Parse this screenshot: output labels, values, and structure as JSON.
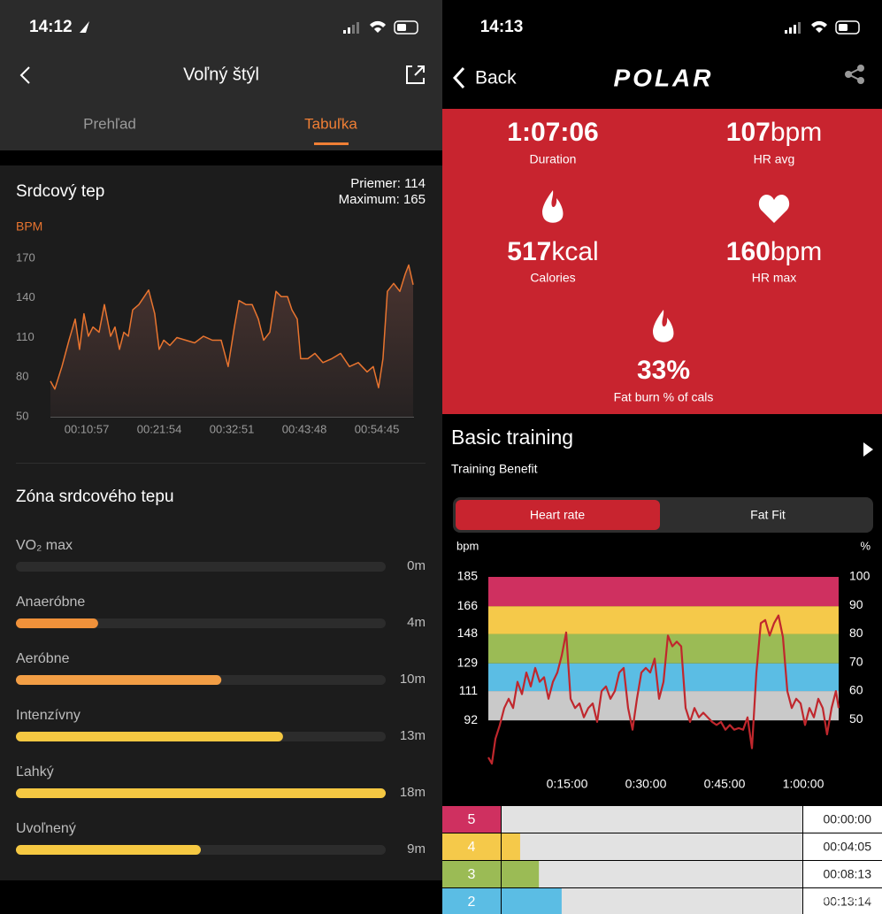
{
  "left": {
    "status_time": "14:12",
    "title": "Voľný štýl",
    "tabs": [
      "Prehľad",
      "Tabuľka"
    ],
    "hr_title": "Srdcový tep",
    "average": "Priemer: 114",
    "maximum": "Maximum: 165",
    "zones_title": "Zóna srdcového tepu"
  },
  "right": {
    "status_time": "14:13",
    "back": "Back",
    "logo": "POLAR",
    "stats": [
      {
        "value": "1:07:06",
        "label": "Duration"
      },
      {
        "value": "107",
        "unit": "bpm",
        "label": "HR avg"
      },
      {
        "value": "517",
        "unit": "kcal",
        "label": "Calories"
      },
      {
        "value": "160",
        "unit": "bpm",
        "label": "HR max"
      },
      {
        "value": "33%",
        "label": "Fat burn % of cals"
      }
    ],
    "training_title": "Basic training",
    "training_subtitle": "Training Benefit",
    "toggle": [
      "Heart rate",
      "Fat Fit"
    ],
    "watermark": "TOUCHIT"
  },
  "chart_data": [
    {
      "type": "line",
      "y_label": "BPM",
      "color": "#e8742f",
      "x": [
        328,
        368,
        432,
        496,
        552,
        592,
        632,
        672,
        713,
        769,
        817,
        873,
        913,
        953,
        993,
        1033,
        1073,
        1129,
        1177,
        1217,
        1273,
        1313,
        1354,
        1410,
        1474,
        1554,
        1634,
        1714,
        1794,
        1874,
        1938,
        1994,
        2035,
        2099,
        2155,
        2211,
        2259,
        2315,
        2371,
        2419,
        2475,
        2515,
        2563,
        2595,
        2659,
        2724,
        2796,
        2876,
        2956,
        3036,
        3116,
        3196,
        3252,
        3300,
        3340,
        3380,
        3437,
        3493,
        3541,
        3573,
        3613
      ],
      "values": [
        77,
        71,
        88,
        108,
        124,
        101,
        128,
        111,
        118,
        114,
        135,
        111,
        118,
        101,
        114,
        111,
        131,
        135,
        141,
        146,
        128,
        101,
        108,
        104,
        110,
        108,
        106,
        111,
        108,
        108,
        88,
        118,
        138,
        135,
        135,
        124,
        108,
        114,
        145,
        141,
        141,
        131,
        124,
        94,
        94,
        98,
        91,
        94,
        98,
        88,
        91,
        84,
        88,
        72,
        94,
        145,
        151,
        145,
        158,
        165,
        150
      ],
      "xlim": [
        328,
        3621
      ],
      "xticks": [
        {
          "value": 657,
          "label": "00:10:57"
        },
        {
          "value": 1314,
          "label": "00:21:54"
        },
        {
          "value": 1971,
          "label": "00:32:51"
        },
        {
          "value": 2628,
          "label": "00:43:48"
        },
        {
          "value": 3285,
          "label": "00:54:45"
        }
      ],
      "ylim": [
        50,
        170
      ],
      "yticks": [
        50,
        80,
        110,
        140,
        170
      ]
    },
    {
      "type": "hbar",
      "categories": [
        "VO₂ max",
        "Anaeróbne",
        "Aeróbne",
        "Intenzívny",
        "Ľahký",
        "Uvoľnený"
      ],
      "values": [
        0,
        4,
        10,
        13,
        18,
        9
      ],
      "value_labels": [
        "0m",
        "4m",
        "10m",
        "13m",
        "18m",
        "9m"
      ],
      "colors": [
        "#f0913a",
        "#f0913a",
        "#f29e45",
        "#f5c842",
        "#f5c842",
        "#f5c842"
      ],
      "xlim": [
        0,
        18
      ]
    },
    {
      "type": "line",
      "y_label": "bpm",
      "y2_label": "%",
      "color": "#c0272d",
      "x": [
        0,
        40,
        81,
        131,
        182,
        233,
        283,
        334,
        384,
        435,
        485,
        536,
        586,
        637,
        688,
        738,
        789,
        839,
        890,
        940,
        991,
        1041,
        1092,
        1143,
        1193,
        1244,
        1294,
        1345,
        1395,
        1446,
        1496,
        1547,
        1598,
        1648,
        1699,
        1749,
        1800,
        1850,
        1901,
        1951,
        2002,
        2053,
        2103,
        2154,
        2204,
        2255,
        2305,
        2356,
        2406,
        2457,
        2508,
        2558,
        2609,
        2659,
        2710,
        2760,
        2811,
        2861,
        2912,
        2963,
        3013,
        3064,
        3114,
        3165,
        3215,
        3266,
        3316,
        3367,
        3418,
        3468,
        3519,
        3569,
        3620,
        3670,
        3721,
        3771,
        3822,
        3872,
        3923,
        3973,
        4004
      ],
      "values": [
        68,
        64,
        80,
        89,
        100,
        106,
        100,
        117,
        109,
        123,
        114,
        126,
        117,
        120,
        106,
        117,
        123,
        134,
        149,
        106,
        100,
        103,
        94,
        100,
        103,
        91,
        111,
        114,
        106,
        111,
        123,
        126,
        100,
        86,
        106,
        123,
        126,
        123,
        132,
        106,
        117,
        147,
        140,
        143,
        140,
        100,
        91,
        100,
        94,
        97,
        94,
        91,
        89,
        91,
        86,
        89,
        86,
        87,
        86,
        94,
        74,
        123,
        155,
        157,
        147,
        155,
        160,
        146,
        111,
        100,
        106,
        103,
        89,
        100,
        94,
        106,
        100,
        83,
        100,
        111,
        100
      ],
      "xlim": [
        0,
        4004
      ],
      "xticks": [
        {
          "value": 900,
          "label": "0:15:00"
        },
        {
          "value": 1800,
          "label": "0:30:00"
        },
        {
          "value": 2700,
          "label": "0:45:00"
        },
        {
          "value": 3600,
          "label": "1:00:00"
        }
      ],
      "ylim": [
        60,
        185
      ],
      "yticks": [
        92,
        111,
        129,
        148,
        166,
        185
      ],
      "y2lim": [
        32.4,
        100
      ],
      "y2ticks": [
        50,
        60,
        70,
        80,
        90,
        100
      ],
      "zone_colors": [
        "#c9c9c9",
        "#5bbde4",
        "#9bbb55",
        "#f5c94a",
        "#cf3060"
      ]
    },
    {
      "type": "hbar",
      "categories": [
        "5",
        "4",
        "3",
        "2"
      ],
      "values": [
        0,
        245,
        493,
        794
      ],
      "value_labels": [
        "00:00:00",
        "00:04:05",
        "00:08:13",
        "00:13:14"
      ],
      "colors": [
        "#cf3060",
        "#f5c94a",
        "#9bbb55",
        "#5bbde4"
      ],
      "xlim": [
        0,
        4000
      ]
    }
  ]
}
